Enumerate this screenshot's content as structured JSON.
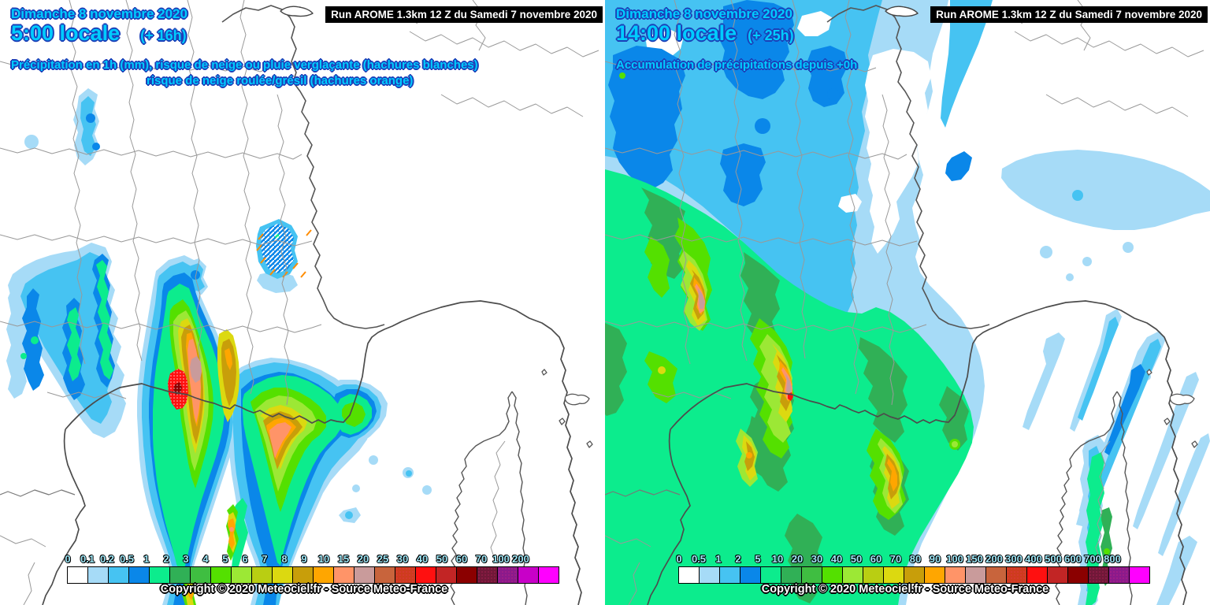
{
  "palette": {
    "white": "#FFFFFF",
    "pale_blue": "#A6DBF7",
    "cyan": "#46C3F2",
    "blue": "#0A87E9",
    "spring_green": "#0CEC8D",
    "sea_green": "#30B056",
    "green": "#3FBE41",
    "bright_green": "#54E000",
    "light_green": "#9CE835",
    "olive": "#B9CE12",
    "yellow": "#DCD910",
    "gold": "#C89E0A",
    "orange": "#FFA600",
    "salmon": "#FF9468",
    "rosy": "#C99B9B",
    "brick_orange": "#C8643C",
    "stippled_red": "#CE3C1E",
    "red": "#FF1010",
    "dark_red": "#C22525",
    "maroon": "#8B0000",
    "stippled_maroon": "#701838",
    "stippled_magenta": "#8B1A8B",
    "magenta": "#C800C8",
    "fuchsia": "#FF00FF",
    "header_text": "#00CCFF",
    "header_outline": "#1C40B8",
    "run_bg": "#000000",
    "run_text": "#FFFFFF",
    "legend_label": "#9FE8F8",
    "boundary": "#999999",
    "coast": "#4C4C4C",
    "snow_hatch": "#FFFFFF",
    "graupel_hatch": "#FF8C00"
  },
  "left_panel": {
    "date": "Dimanche 8 novembre 2020",
    "time": "5:00 locale",
    "forecast_offset": "(+ 16h)",
    "subtitle_line1": "Précipitation en 1h (mm), risque de neige ou pluie verglaçante (hachures blanches)",
    "subtitle_line2": "risque de neige roulée/grésil (hachures orange)",
    "run_label": "Run AROME 1.3km 12 Z du Samedi 7 novembre 2020",
    "copyright": "Copyright © 2020 Meteociel.fr - Source Meteo-France",
    "legend": {
      "labels": [
        "0",
        "0.1",
        "0.2",
        "0.5",
        "1",
        "2",
        "3",
        "4",
        "5",
        "6",
        "7",
        "8",
        "9",
        "10",
        "15",
        "20",
        "25",
        "30",
        "40",
        "50",
        "60",
        "70",
        "100",
        "200"
      ],
      "colors": [
        "#FFFFFF",
        "#A6DBF7",
        "#46C3F2",
        "#0A87E9",
        "#0CEC8D",
        "#30B056",
        "#3FBE41",
        "#54E000",
        "#9CE835",
        "#B9CE12",
        "#DCD910",
        "#C89E0A",
        "#FFA600",
        "#FF9468",
        "#C99B9B",
        "#C8643C",
        "#CE3C1E",
        "#FF1010",
        "#C22525",
        "#8B0000",
        "#701838",
        "#8B1A8B",
        "#C800C8",
        "#FF00FF"
      ],
      "stippled_indices": [
        16,
        20,
        21
      ]
    }
  },
  "right_panel": {
    "date": "Dimanche 8 novembre 2020",
    "time": "14:00 locale",
    "forecast_offset": "(+ 25h)",
    "subtitle_line1": "Accumulation de précipitations depuis +0h",
    "run_label": "Run AROME 1.3km 12 Z du Samedi 7 novembre 2020",
    "copyright": "Copyright © 2020 Meteociel.fr - Source Meteo-France",
    "legend": {
      "labels": [
        "0",
        "0.5",
        "1",
        "2",
        "5",
        "10",
        "20",
        "30",
        "40",
        "50",
        "60",
        "70",
        "80",
        "90",
        "100",
        "150",
        "200",
        "300",
        "400",
        "500",
        "600",
        "700",
        "800"
      ],
      "colors": [
        "#FFFFFF",
        "#A6DBF7",
        "#46C3F2",
        "#0A87E9",
        "#0CEC8D",
        "#30B056",
        "#3FBE41",
        "#54E000",
        "#9CE835",
        "#B9CE12",
        "#DCD910",
        "#C89E0A",
        "#FFA600",
        "#FF9468",
        "#C99B9B",
        "#C8643C",
        "#CE3C1E",
        "#FF1010",
        "#C22525",
        "#8B0000",
        "#701838",
        "#8B1A8B",
        "#FF00FF"
      ],
      "stippled_indices": [
        16,
        20,
        21
      ]
    }
  }
}
